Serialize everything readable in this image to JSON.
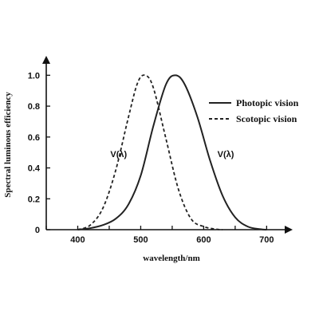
{
  "chart_data": {
    "type": "line",
    "title": "",
    "xlabel": "wavelength/nm",
    "ylabel": "Spectral luminous efficiency",
    "xlim": [
      350,
      735
    ],
    "ylim": [
      0,
      1.1
    ],
    "x_ticks": [
      400,
      500,
      600,
      700
    ],
    "x_tick_labels": [
      "400",
      "500",
      "600",
      "700"
    ],
    "y_ticks": [
      0,
      0.2,
      0.4,
      0.6,
      0.8,
      1.0
    ],
    "y_tick_labels": [
      "0",
      "0.2",
      "0.4",
      "0.6",
      "0.8",
      "1.0"
    ],
    "grid": false,
    "legend_position": "top-right",
    "series": [
      {
        "name": "Photopic vision",
        "style": "solid",
        "color": "#222222",
        "x": [
          400,
          420,
          440,
          460,
          480,
          500,
          520,
          540,
          555,
          570,
          590,
          610,
          630,
          650,
          670,
          690,
          700
        ],
        "y": [
          0.0,
          0.01,
          0.03,
          0.07,
          0.16,
          0.35,
          0.67,
          0.94,
          1.0,
          0.94,
          0.73,
          0.45,
          0.22,
          0.08,
          0.02,
          0.003,
          0.0
        ]
      },
      {
        "name": "Scotopic vision",
        "style": "dashed",
        "color": "#222222",
        "x": [
          400,
          420,
          440,
          460,
          480,
          495,
          507,
          520,
          540,
          560,
          580,
          600,
          620,
          630
        ],
        "y": [
          0.0,
          0.03,
          0.14,
          0.38,
          0.72,
          0.95,
          1.0,
          0.92,
          0.59,
          0.26,
          0.07,
          0.02,
          0.003,
          0.0
        ]
      }
    ],
    "annotations": [
      {
        "text": "V(λ)",
        "x": 465,
        "y": 0.47
      },
      {
        "text": "V(λ)",
        "x": 635,
        "y": 0.47
      }
    ]
  }
}
